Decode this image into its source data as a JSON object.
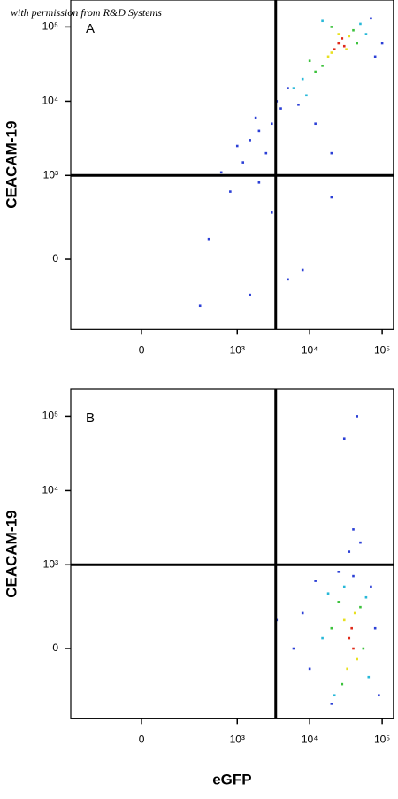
{
  "watermark": "with permission from R&D Systems",
  "chart_data": [
    {
      "type": "scatter",
      "panel_label": "A",
      "ylabel": "CEACAM-19",
      "scale": "biexponential",
      "xlim": [
        -450,
        143000
      ],
      "ylim": [
        -650,
        230000
      ],
      "xticks": [
        0,
        {
          "value": 1000,
          "label": "10³"
        },
        {
          "value": 10000,
          "label": "10⁴"
        },
        {
          "value": 100000,
          "label": "10⁵"
        }
      ],
      "yticks": [
        0,
        {
          "value": 1000,
          "label": "10³"
        },
        {
          "value": 10000,
          "label": "10⁴"
        },
        {
          "value": 100000,
          "label": "10⁵"
        }
      ],
      "gates": {
        "x": 3400,
        "y": 1000
      },
      "series": [
        {
          "color": "#2b3fd6",
          "x": [
            4000,
            3000,
            2000,
            1500,
            5000,
            70000,
            80000,
            7000,
            2500,
            1200,
            1000,
            3500,
            100000,
            1800,
            12000,
            20000,
            600,
            800,
            1500,
            400,
            3000,
            5000,
            8000,
            20000,
            300,
            2000
          ],
          "y": [
            8000,
            5000,
            4000,
            3000,
            15000,
            130000,
            40000,
            9000,
            2000,
            1500,
            2500,
            10000,
            60000,
            6000,
            5000,
            2000,
            1100,
            600,
            -200,
            100,
            300,
            -100,
            -50,
            500,
            -300,
            800
          ]
        },
        {
          "color": "#27b8d8",
          "x": [
            8000,
            50000,
            6000,
            60000,
            15000,
            9000
          ],
          "y": [
            20000,
            110000,
            15000,
            80000,
            120000,
            12000
          ]
        },
        {
          "color": "#3cc23c",
          "x": [
            15000,
            40000,
            12000,
            45000,
            20000,
            10000
          ],
          "y": [
            30000,
            90000,
            25000,
            60000,
            100000,
            35000
          ]
        },
        {
          "color": "#e8e020",
          "x": [
            20000,
            35000,
            18000,
            32000,
            25000
          ],
          "y": [
            45000,
            75000,
            40000,
            50000,
            80000
          ]
        },
        {
          "color": "#e02a1a",
          "x": [
            25000,
            30000,
            22000,
            28000
          ],
          "y": [
            60000,
            55000,
            50000,
            70000
          ]
        }
      ]
    },
    {
      "type": "scatter",
      "panel_label": "B",
      "ylabel": "CEACAM-19",
      "xlabel": "eGFP",
      "scale": "biexponential",
      "xlim": [
        -450,
        143000
      ],
      "ylim": [
        -650,
        230000
      ],
      "xticks": [
        0,
        {
          "value": 1000,
          "label": "10³"
        },
        {
          "value": 10000,
          "label": "10⁴"
        },
        {
          "value": 100000,
          "label": "10⁵"
        }
      ],
      "yticks": [
        0,
        {
          "value": 1000,
          "label": "10³"
        },
        {
          "value": 10000,
          "label": "10⁴"
        },
        {
          "value": 100000,
          "label": "10⁵"
        }
      ],
      "gates": {
        "x": 3400,
        "y": 1000
      },
      "series": [
        {
          "color": "#2b3fd6",
          "x": [
            12000,
            80000,
            10000,
            8000,
            90000,
            25000,
            40000,
            6000,
            3500,
            30000,
            45000,
            40000,
            50000,
            35000,
            20000,
            70000
          ],
          "y": [
            600,
            100,
            -100,
            200,
            -300,
            800,
            700,
            0,
            150,
            50000,
            100000,
            3000,
            2000,
            1500,
            -400,
            500
          ]
        },
        {
          "color": "#27b8d8",
          "x": [
            18000,
            65000,
            22000,
            60000,
            15000,
            30000
          ],
          "y": [
            400,
            -150,
            -300,
            350,
            50,
            500
          ]
        },
        {
          "color": "#3cc23c",
          "x": [
            25000,
            55000,
            28000,
            50000,
            20000
          ],
          "y": [
            300,
            0,
            -200,
            250,
            100
          ]
        },
        {
          "color": "#e8e020",
          "x": [
            30000,
            45000,
            33000,
            42000
          ],
          "y": [
            150,
            -50,
            -100,
            200
          ]
        },
        {
          "color": "#e02a1a",
          "x": [
            35000,
            40000,
            38000
          ],
          "y": [
            50,
            0,
            100
          ]
        }
      ]
    }
  ]
}
